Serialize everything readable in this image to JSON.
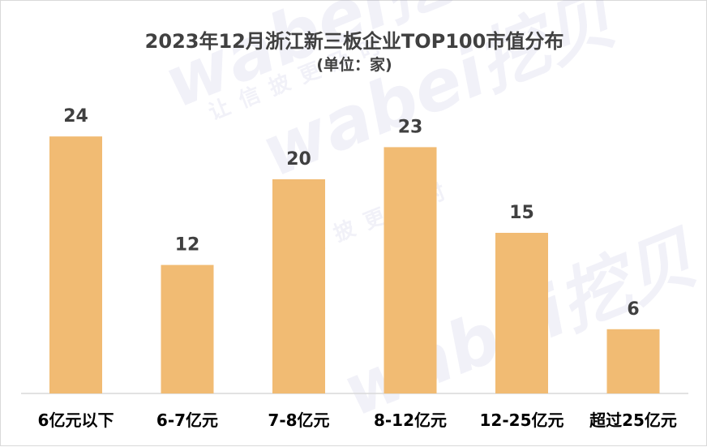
{
  "chart_data": {
    "type": "bar",
    "title": "2023年12月浙江新三板企业TOP100市值分布",
    "subtitle": "(单位：家)",
    "categories": [
      "6亿元以下",
      "6-7亿元",
      "7-8亿元",
      "8-12亿元",
      "12-25亿元",
      "超过25亿元"
    ],
    "values": [
      24,
      12,
      20,
      23,
      15,
      6
    ],
    "ylim": [
      0,
      28
    ],
    "grid": false,
    "legend": "none",
    "bar_color": "#f1bb73"
  },
  "watermark": {
    "brand": "wabei挖贝",
    "slogan": "让信披更及时"
  }
}
